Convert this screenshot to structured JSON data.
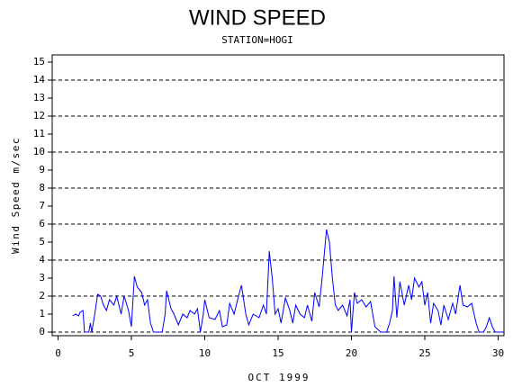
{
  "chart_data": {
    "type": "line",
    "title": "WIND SPEED",
    "subtitle": "STATION=HOGI",
    "x_label": "OCT 1999",
    "y_label": "Wind Speed m/sec",
    "xlim": [
      -0.4,
      30.4
    ],
    "xticks": [
      0,
      5,
      10,
      15,
      20,
      25,
      30
    ],
    "ylim": [
      -0.2,
      15.4
    ],
    "yticks": [
      0,
      1,
      2,
      3,
      4,
      5,
      6,
      7,
      8,
      9,
      10,
      11,
      12,
      13,
      14,
      15
    ],
    "grid": true,
    "series": [
      {
        "name": "Wind Speed",
        "color": "#0000ff",
        "x": [
          1.0,
          1.2,
          1.4,
          1.5,
          1.7,
          1.8,
          2.1,
          2.2,
          2.3,
          2.5,
          2.7,
          2.9,
          3.1,
          3.3,
          3.5,
          3.8,
          4.0,
          4.3,
          4.5,
          4.8,
          5.0,
          5.2,
          5.4,
          5.7,
          5.9,
          6.1,
          6.3,
          6.5,
          7.1,
          7.3,
          7.4,
          7.7,
          7.9,
          8.2,
          8.5,
          8.8,
          9.0,
          9.3,
          9.5,
          9.7,
          9.9,
          10.0,
          10.3,
          10.7,
          11.0,
          11.2,
          11.5,
          11.7,
          12.0,
          12.3,
          12.5,
          12.8,
          13.0,
          13.3,
          13.7,
          14.0,
          14.2,
          14.4,
          14.6,
          14.8,
          15.0,
          15.2,
          15.5,
          15.8,
          16.0,
          16.2,
          16.5,
          16.8,
          17.0,
          17.3,
          17.5,
          17.8,
          18.0,
          18.3,
          18.5,
          18.7,
          18.9,
          19.1,
          19.4,
          19.7,
          19.9,
          20.0,
          20.2,
          20.4,
          20.7,
          21.0,
          21.3,
          21.6,
          22.0,
          22.4,
          22.6,
          22.8,
          22.9,
          23.1,
          23.3,
          23.6,
          23.9,
          24.1,
          24.3,
          24.6,
          24.8,
          25.0,
          25.2,
          25.4,
          25.6,
          25.9,
          26.1,
          26.3,
          26.6,
          26.9,
          27.1,
          27.4,
          27.6,
          27.9,
          28.2,
          28.5,
          28.7,
          29.0,
          29.2,
          29.4,
          29.6,
          29.8,
          30.4
        ],
        "values": [
          0.9,
          1.0,
          0.9,
          1.1,
          1.2,
          0,
          0,
          0.5,
          0,
          1.0,
          2.1,
          2.0,
          1.5,
          1.2,
          1.8,
          1.5,
          2.0,
          1.0,
          2.0,
          1.2,
          0.3,
          3.1,
          2.5,
          2.2,
          1.5,
          1.8,
          0.5,
          0,
          0,
          1.0,
          2.3,
          1.3,
          1.0,
          0.4,
          1.0,
          0.8,
          1.2,
          1.0,
          1.3,
          0,
          1.0,
          1.8,
          0.8,
          0.7,
          1.2,
          0.3,
          0.4,
          1.6,
          1.0,
          2.0,
          2.6,
          1.0,
          0.4,
          1.0,
          0.8,
          1.5,
          1.0,
          4.5,
          3.0,
          1.0,
          1.3,
          0.5,
          1.9,
          1.2,
          0.5,
          1.5,
          1.0,
          0.8,
          1.5,
          0.6,
          2.2,
          1.4,
          3.0,
          5.7,
          5.0,
          3.0,
          1.5,
          1.2,
          1.5,
          0.9,
          1.8,
          0,
          2.2,
          1.6,
          1.8,
          1.4,
          1.7,
          0.3,
          0,
          0,
          0.5,
          1.2,
          3.1,
          0.8,
          2.8,
          1.5,
          2.6,
          1.8,
          3.0,
          2.5,
          2.8,
          1.5,
          2.2,
          0.5,
          1.6,
          1.2,
          0.4,
          1.5,
          0.7,
          1.6,
          1.0,
          2.6,
          1.5,
          1.4,
          1.6,
          0.5,
          0,
          0,
          0.3,
          0.8,
          0.3,
          0,
          0
        ]
      }
    ]
  }
}
